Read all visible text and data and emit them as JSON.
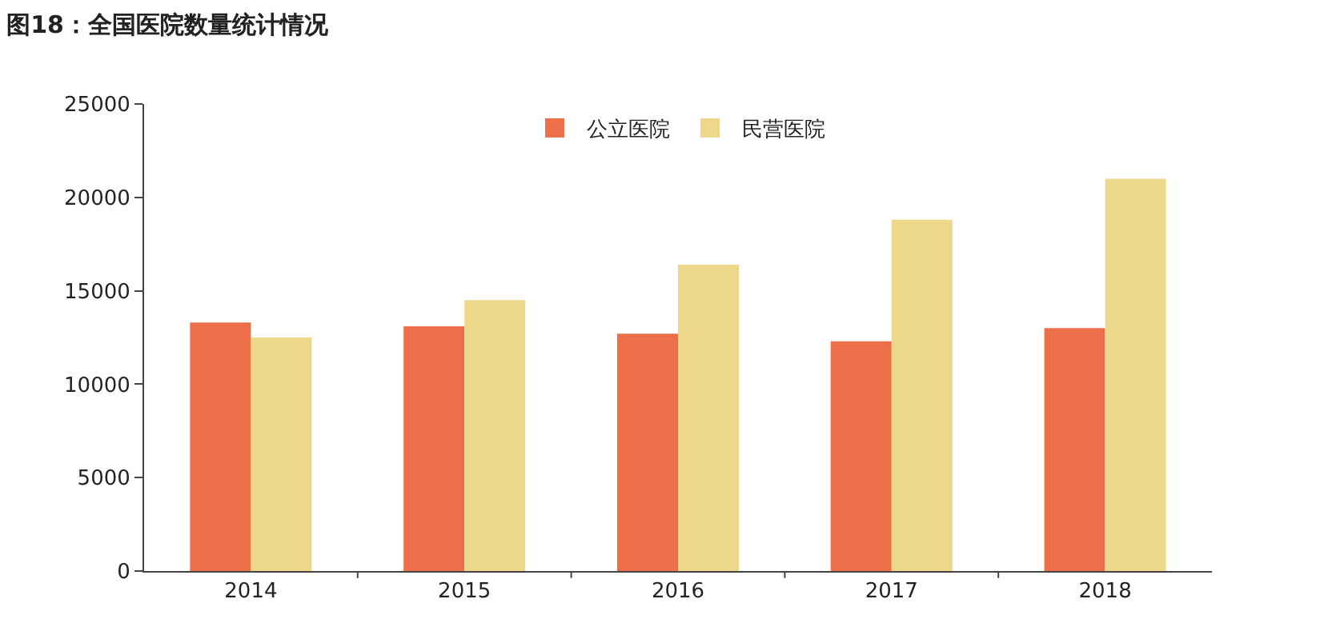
{
  "chart_data": {
    "type": "bar",
    "title": "图18：全国医院数量统计情况",
    "categories": [
      "2014",
      "2015",
      "2016",
      "2017",
      "2018"
    ],
    "series": [
      {
        "name": "公立医院",
        "color": "#ec6f4a",
        "values": [
          13300,
          13100,
          12700,
          12300,
          13000
        ]
      },
      {
        "name": "民营医院",
        "color": "#edd78b",
        "values": [
          12500,
          14500,
          16400,
          18800,
          21000
        ]
      }
    ],
    "ylim": [
      0,
      25000
    ],
    "yticks": [
      0,
      5000,
      10000,
      15000,
      20000,
      25000
    ],
    "legend": "top"
  }
}
